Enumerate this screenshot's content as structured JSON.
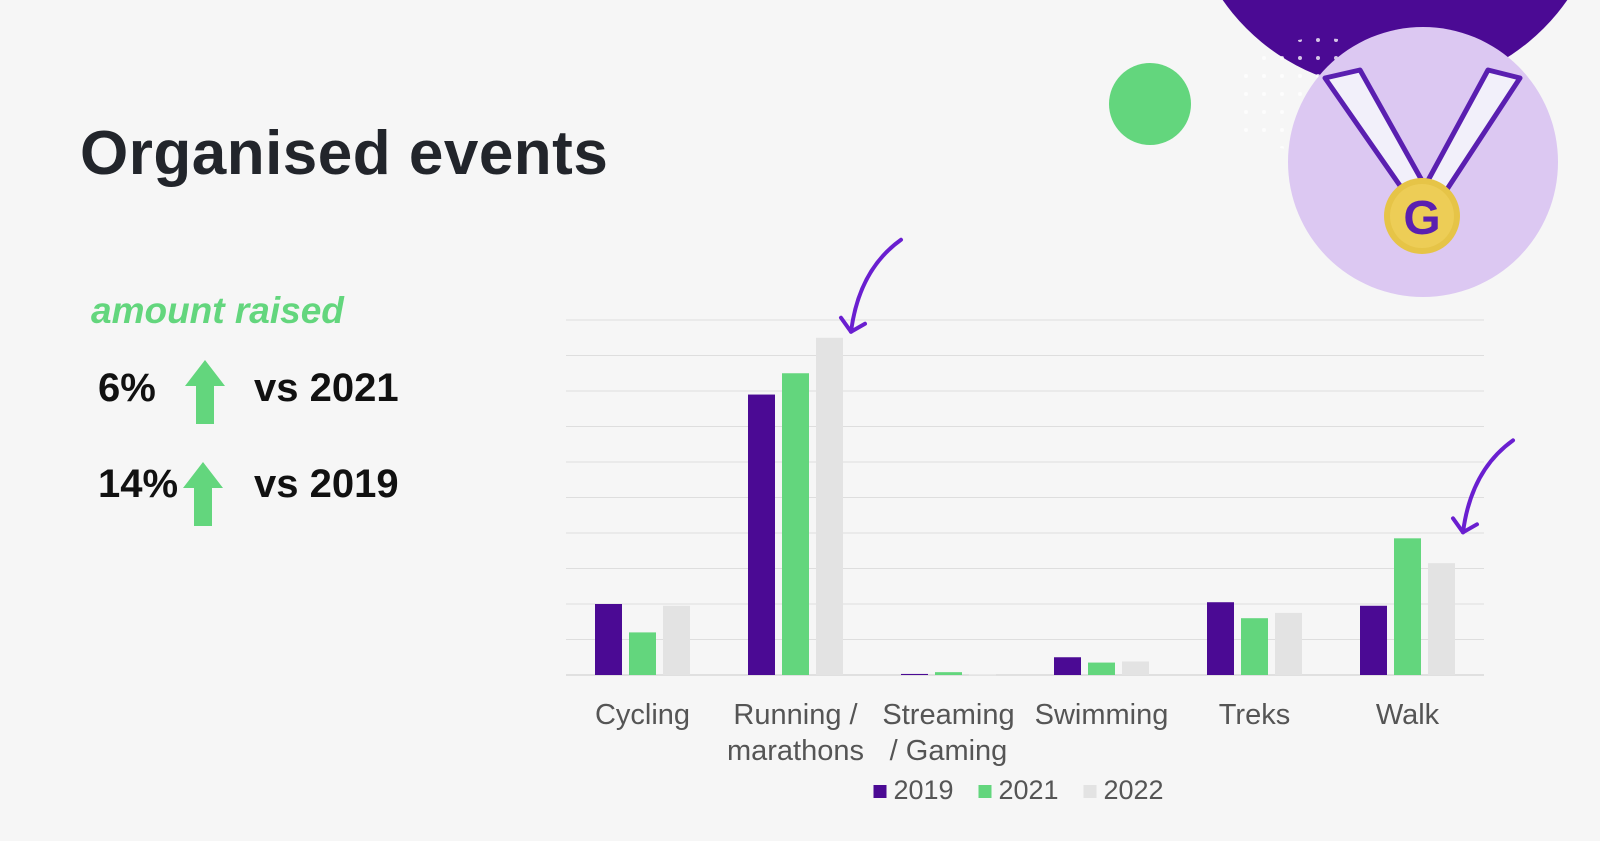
{
  "slide": {
    "title": "Organised events"
  },
  "kpis": {
    "heading": "amount raised",
    "items": [
      {
        "value": "6%",
        "comparison": "vs 2021",
        "direction": "up"
      },
      {
        "value": "14%",
        "comparison": "vs 2019",
        "direction": "up"
      }
    ]
  },
  "colors": {
    "accent_green": "#63d67d",
    "brand_purple": "#4b0a94",
    "light_gray": "#e3e3e3",
    "medal_bg": "#dcc8f2",
    "title_text": "#22252b"
  },
  "icons": {
    "medal": "medal-icon",
    "medal_letter": "G",
    "arrow_up": "arrow-up-icon",
    "annotation_arrow": "curved-arrow-icon"
  },
  "chart_data": {
    "type": "bar",
    "categories": [
      "Cycling",
      "Running / marathons",
      "Streaming / Gaming",
      "Swimming",
      "Treks",
      "Walk"
    ],
    "category_lines": [
      [
        "Cycling"
      ],
      [
        "Running /",
        "marathons"
      ],
      [
        "Streaming",
        "/ Gaming"
      ],
      [
        "Swimming"
      ],
      [
        "Treks"
      ],
      [
        "Walk"
      ]
    ],
    "series": [
      {
        "name": "2019",
        "color": "#4b0a94",
        "values": [
          2.0,
          7.9,
          0.03,
          0.5,
          2.05,
          1.95
        ]
      },
      {
        "name": "2021",
        "color": "#63d67d",
        "values": [
          1.2,
          8.5,
          0.08,
          0.35,
          1.6,
          3.85
        ]
      },
      {
        "name": "2022",
        "color": "#e3e3e3",
        "values": [
          1.95,
          9.5,
          0.01,
          0.38,
          1.75,
          3.15
        ]
      }
    ],
    "ylim": [
      0,
      10
    ],
    "grid": true,
    "gridlines": 10,
    "legend": "bottom-center",
    "highlighted_categories": [
      "Running / marathons",
      "Walk"
    ],
    "xlabel": "",
    "ylabel": ""
  }
}
